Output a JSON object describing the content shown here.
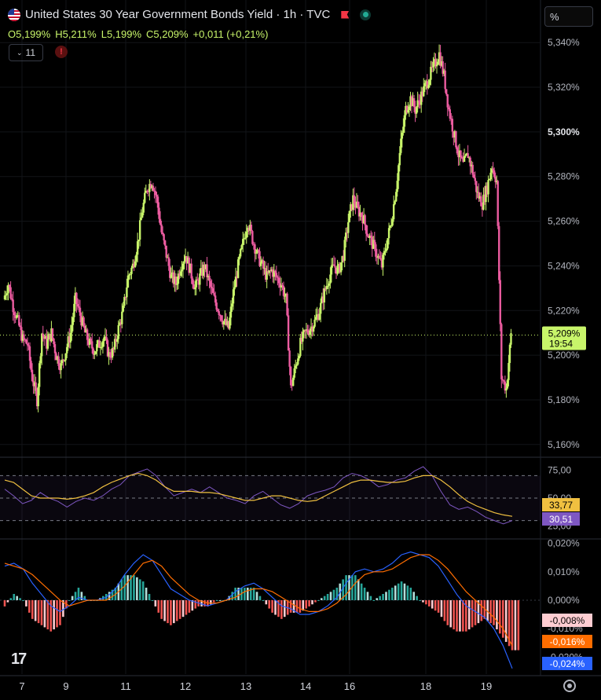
{
  "header": {
    "title": "United States 30 Year Government Bonds Yield · 1h · TVC",
    "ohlc": {
      "o": "O5,199%",
      "h": "H5,211%",
      "l": "L5,199%",
      "c": "C5,209%",
      "chg": "+0,011 (+0,21%)"
    },
    "indicator_count": "11",
    "alert_label": "!",
    "unit_label": "%",
    "logo": "17"
  },
  "colors": {
    "up": "#c8f56a",
    "down": "#ec5ca0",
    "rsi": "#7e57c2",
    "rsi_ma": "#f0c040",
    "macd": "#2962ff",
    "signal": "#ff6d00",
    "hist_up": "#26a69a",
    "hist_down": "#ef5350"
  },
  "chart_data": [
    {
      "type": "candlestick",
      "title": "United States 30 Year Government Bonds Yield · 1h · TVC",
      "x_ticks": [
        "7",
        "9",
        "11",
        "12",
        "13",
        "14",
        "16",
        "18",
        "19"
      ],
      "y_ticks": [
        "5,340%",
        "5,320%",
        "5,300%",
        "5,280%",
        "5,260%",
        "5,240%",
        "5,220%",
        "5,200%",
        "5,180%",
        "5,160%"
      ],
      "ylim": [
        5.155,
        5.345
      ],
      "last": {
        "value": 5.209,
        "label": "5,209%",
        "countdown": "19:54"
      },
      "close_path": [
        5.225,
        5.232,
        5.222,
        5.215,
        5.207,
        5.205,
        5.19,
        5.18,
        5.21,
        5.205,
        5.21,
        5.2,
        5.195,
        5.202,
        5.21,
        5.225,
        5.218,
        5.21,
        5.205,
        5.202,
        5.205,
        5.208,
        5.2,
        5.202,
        5.212,
        5.22,
        5.235,
        5.24,
        5.25,
        5.265,
        5.275,
        5.278,
        5.27,
        5.255,
        5.245,
        5.235,
        5.232,
        5.24,
        5.245,
        5.238,
        5.23,
        5.235,
        5.24,
        5.232,
        5.225,
        5.22,
        5.215,
        5.212,
        5.228,
        5.24,
        5.25,
        5.26,
        5.252,
        5.245,
        5.24,
        5.235,
        5.238,
        5.235,
        5.232,
        5.225,
        5.185,
        5.195,
        5.205,
        5.21,
        5.212,
        5.215,
        5.22,
        5.228,
        5.235,
        5.24,
        5.238,
        5.245,
        5.26,
        5.27,
        5.265,
        5.262,
        5.255,
        5.25,
        5.245,
        5.24,
        5.25,
        5.26,
        5.275,
        5.295,
        5.31,
        5.315,
        5.31,
        5.315,
        5.32,
        5.325,
        5.33,
        5.335,
        5.325,
        5.31,
        5.3,
        5.29,
        5.285,
        5.29,
        5.282,
        5.272,
        5.268,
        5.275,
        5.285,
        5.278,
        5.19,
        5.185,
        5.209
      ]
    },
    {
      "type": "line",
      "name": "RSI",
      "y_ticks": [
        "75,00",
        "50,00",
        "25,00"
      ],
      "ylim": [
        15,
        85
      ],
      "bands": [
        70,
        50,
        30
      ],
      "last_rsi": "30,51",
      "last_ma": "33,77",
      "rsi": [
        58,
        52,
        45,
        48,
        55,
        50,
        47,
        42,
        47,
        50,
        48,
        52,
        58,
        62,
        70,
        73,
        76,
        70,
        60,
        52,
        55,
        58,
        55,
        60,
        55,
        50,
        48,
        45,
        52,
        56,
        50,
        44,
        41,
        45,
        52,
        55,
        57,
        60,
        68,
        72,
        70,
        66,
        60,
        62,
        66,
        68,
        74,
        78,
        70,
        56,
        44,
        40,
        42,
        38,
        33,
        30,
        27,
        30
      ],
      "ma": [
        66,
        64,
        58,
        52,
        50,
        50,
        50,
        49,
        50,
        52,
        55,
        60,
        64,
        67,
        70,
        72,
        70,
        66,
        60,
        56,
        56,
        56,
        55,
        55,
        54,
        52,
        50,
        48,
        48,
        50,
        52,
        52,
        50,
        48,
        47,
        48,
        52,
        56,
        60,
        64,
        66,
        66,
        65,
        64,
        64,
        65,
        68,
        70,
        70,
        66,
        60,
        53,
        47,
        43,
        40,
        37,
        35,
        33.77
      ]
    },
    {
      "type": "bar",
      "name": "MACD",
      "y_ticks": [
        "0,020%",
        "0,010%",
        "0,000%",
        "-0,010%",
        "-0,020%"
      ],
      "ylim": [
        -0.026,
        0.021
      ],
      "last_hist": "-0,008%",
      "last_signal": "-0,016%",
      "last_macd": "-0,024%",
      "macd": [
        0.012,
        0.013,
        0.011,
        0.006,
        0.002,
        -0.002,
        -0.004,
        -0.002,
        0.001,
        0.0,
        0.0,
        0.001,
        0.004,
        0.009,
        0.013,
        0.016,
        0.014,
        0.009,
        0.004,
        0.002,
        0.0,
        -0.001,
        -0.002,
        -0.001,
        0.0,
        0.003,
        0.005,
        0.006,
        0.004,
        0.001,
        -0.002,
        -0.003,
        -0.005,
        -0.005,
        -0.004,
        -0.002,
        0.001,
        0.006,
        0.01,
        0.011,
        0.01,
        0.011,
        0.013,
        0.016,
        0.017,
        0.016,
        0.015,
        0.012,
        0.007,
        0.002,
        -0.002,
        -0.004,
        -0.006,
        -0.01,
        -0.016,
        -0.024
      ],
      "signal": [
        0.013,
        0.012,
        0.011,
        0.009,
        0.006,
        0.003,
        0.0,
        -0.002,
        -0.001,
        0.0,
        0.0,
        0.0,
        0.002,
        0.005,
        0.009,
        0.013,
        0.014,
        0.012,
        0.008,
        0.005,
        0.002,
        0.0,
        -0.001,
        -0.001,
        0.0,
        0.001,
        0.003,
        0.004,
        0.004,
        0.003,
        0.001,
        -0.001,
        -0.003,
        -0.004,
        -0.004,
        -0.003,
        -0.001,
        0.002,
        0.006,
        0.009,
        0.01,
        0.01,
        0.011,
        0.013,
        0.015,
        0.016,
        0.016,
        0.014,
        0.011,
        0.007,
        0.003,
        0.0,
        -0.003,
        -0.006,
        -0.01,
        -0.016
      ]
    }
  ]
}
